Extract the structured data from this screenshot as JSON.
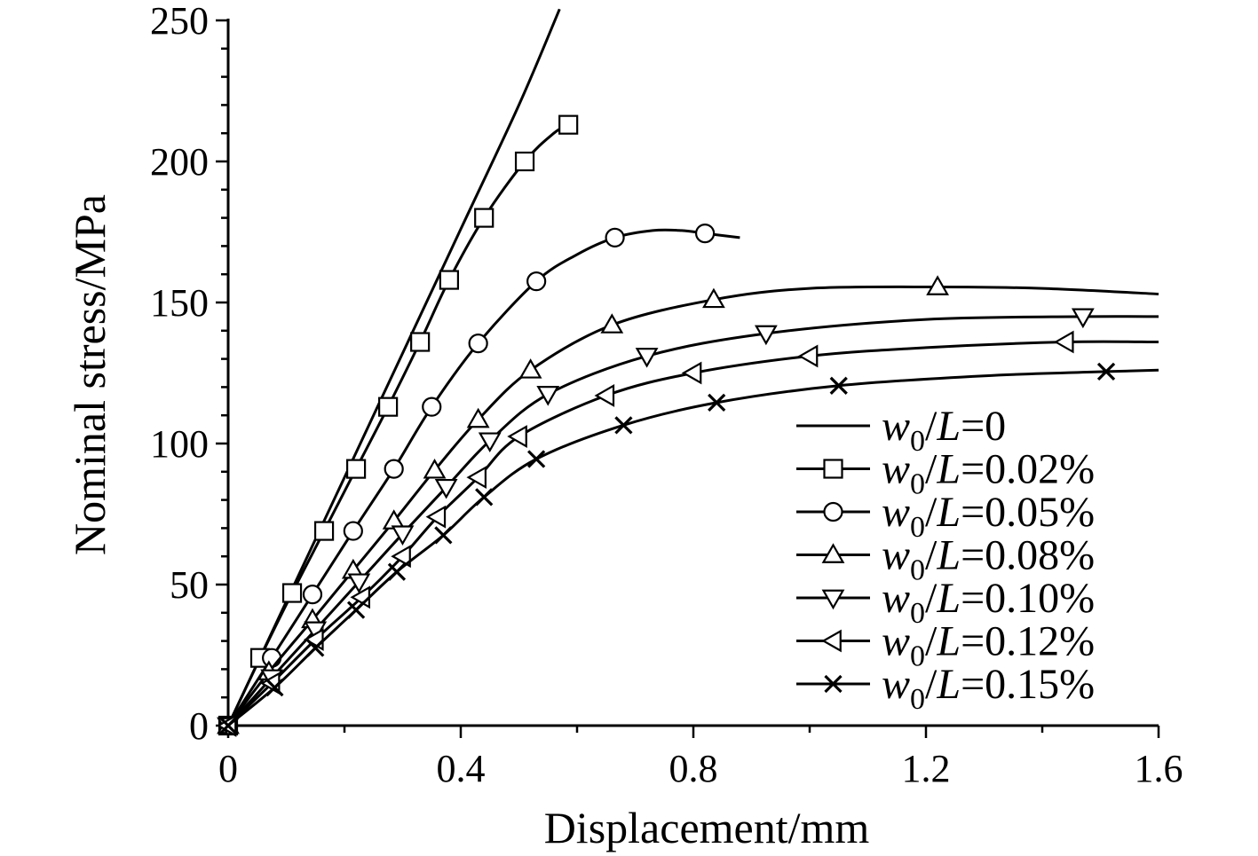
{
  "chart_data": {
    "type": "line",
    "title": "",
    "xlabel": "Displacement/mm",
    "ylabel": "Nominal stress/MPa",
    "xlim": [
      0,
      1.6
    ],
    "ylim": [
      0,
      250
    ],
    "xticks": [
      "0",
      "0.4",
      "0.8",
      "1.2",
      "1.6"
    ],
    "yticks": [
      "0",
      "50",
      "100",
      "150",
      "200",
      "250"
    ],
    "grid": false,
    "legend_position": "lower-right",
    "series": [
      {
        "name": "w0/L=0",
        "legend_var": "w",
        "legend_sub": "0",
        "legend_rest": "/L=0",
        "marker": "none",
        "x": [
          0,
          0.1,
          0.2,
          0.3,
          0.4,
          0.5,
          0.57
        ],
        "y": [
          0,
          44,
          88,
          132,
          176,
          220,
          254
        ],
        "marker_x": [],
        "marker_y": []
      },
      {
        "name": "w0/L=0.02%",
        "legend_var": "w",
        "legend_sub": "0",
        "legend_rest": "/L=0.02%",
        "marker": "square",
        "x": [
          0,
          0.055,
          0.11,
          0.165,
          0.22,
          0.275,
          0.33,
          0.38,
          0.44,
          0.51,
          0.56,
          0.585
        ],
        "y": [
          0,
          24,
          47,
          69,
          91,
          113,
          136,
          158,
          180,
          200,
          210,
          213
        ],
        "marker_x": [
          0.055,
          0.11,
          0.165,
          0.22,
          0.275,
          0.33,
          0.38,
          0.44,
          0.51,
          0.585
        ],
        "marker_y": [
          24,
          47,
          69,
          91,
          113,
          136,
          158,
          180,
          200,
          213
        ]
      },
      {
        "name": "w0/L=0.05%",
        "legend_var": "w",
        "legend_sub": "0",
        "legend_rest": "/L=0.05%",
        "marker": "circle",
        "x": [
          0,
          0.075,
          0.145,
          0.215,
          0.285,
          0.35,
          0.43,
          0.53,
          0.6,
          0.665,
          0.73,
          0.78,
          0.82,
          0.88
        ],
        "y": [
          0,
          24,
          46.5,
          69,
          91,
          113,
          135.5,
          157.5,
          167,
          173,
          175.5,
          175.5,
          174.5,
          173
        ],
        "marker_x": [
          0.075,
          0.145,
          0.215,
          0.285,
          0.35,
          0.43,
          0.53,
          0.665,
          0.82
        ],
        "marker_y": [
          24,
          46.5,
          69,
          91,
          113,
          135.5,
          157.5,
          173,
          174.5
        ]
      },
      {
        "name": "w0/L=0.08%",
        "legend_var": "w",
        "legend_sub": "0",
        "legend_rest": "/L=0.08%",
        "marker": "triangle-up",
        "x": [
          0,
          0.07,
          0.145,
          0.215,
          0.285,
          0.355,
          0.43,
          0.52,
          0.66,
          0.835,
          1.0,
          1.22,
          1.4,
          1.6
        ],
        "y": [
          0,
          19,
          37.5,
          55,
          72.5,
          90.5,
          108.5,
          126,
          142,
          151,
          155,
          155.5,
          155,
          153
        ],
        "marker_x": [
          0.07,
          0.145,
          0.215,
          0.285,
          0.355,
          0.43,
          0.52,
          0.66,
          0.835,
          1.22
        ],
        "marker_y": [
          19,
          37.5,
          55,
          72.5,
          90.5,
          108.5,
          126,
          142,
          151,
          155.5
        ]
      },
      {
        "name": "w0/L=0.10%",
        "legend_var": "w",
        "legend_sub": "0",
        "legend_rest": "/L=0.10%",
        "marker": "triangle-down",
        "x": [
          0,
          0.075,
          0.15,
          0.225,
          0.3,
          0.375,
          0.45,
          0.55,
          0.72,
          0.925,
          1.2,
          1.47,
          1.6
        ],
        "y": [
          0,
          17,
          34,
          51,
          68,
          84.5,
          101,
          117.5,
          131,
          139,
          144,
          145,
          145
        ],
        "marker_x": [
          0.075,
          0.15,
          0.225,
          0.3,
          0.375,
          0.45,
          0.55,
          0.72,
          0.925,
          1.47
        ],
        "marker_y": [
          17,
          34,
          51,
          68,
          84.5,
          101,
          117.5,
          131,
          139,
          145
        ]
      },
      {
        "name": "w0/L=0.12%",
        "legend_var": "w",
        "legend_sub": "0",
        "legend_rest": "/L=0.12%",
        "marker": "triangle-left",
        "x": [
          0,
          0.075,
          0.15,
          0.23,
          0.3,
          0.36,
          0.43,
          0.5,
          0.65,
          0.8,
          1.0,
          1.2,
          1.44,
          1.6
        ],
        "y": [
          0,
          15,
          30.5,
          45.5,
          60,
          74,
          88,
          102.5,
          117,
          125,
          131,
          134,
          136,
          136
        ],
        "marker_x": [
          0.075,
          0.15,
          0.23,
          0.3,
          0.36,
          0.43,
          0.5,
          0.65,
          0.8,
          1.0,
          1.44
        ],
        "marker_y": [
          15,
          30.5,
          45.5,
          60,
          74,
          88,
          102.5,
          117,
          125,
          131,
          136
        ]
      },
      {
        "name": "w0/L=0.15%",
        "legend_var": "w",
        "legend_sub": "0",
        "legend_rest": "/L=0.15%",
        "marker": "x",
        "x": [
          0,
          0.08,
          0.15,
          0.22,
          0.29,
          0.37,
          0.44,
          0.53,
          0.68,
          0.84,
          1.05,
          1.3,
          1.51,
          1.6
        ],
        "y": [
          0,
          13.5,
          27.5,
          41,
          54.5,
          67.5,
          81,
          94.5,
          106.5,
          114.5,
          120.5,
          124,
          125.5,
          126
        ],
        "marker_x": [
          0.08,
          0.15,
          0.22,
          0.29,
          0.37,
          0.44,
          0.53,
          0.68,
          0.84,
          1.05,
          1.51
        ],
        "marker_y": [
          13.5,
          27.5,
          41,
          54.5,
          67.5,
          81,
          94.5,
          106.5,
          114.5,
          120.5,
          125.5
        ]
      }
    ]
  }
}
